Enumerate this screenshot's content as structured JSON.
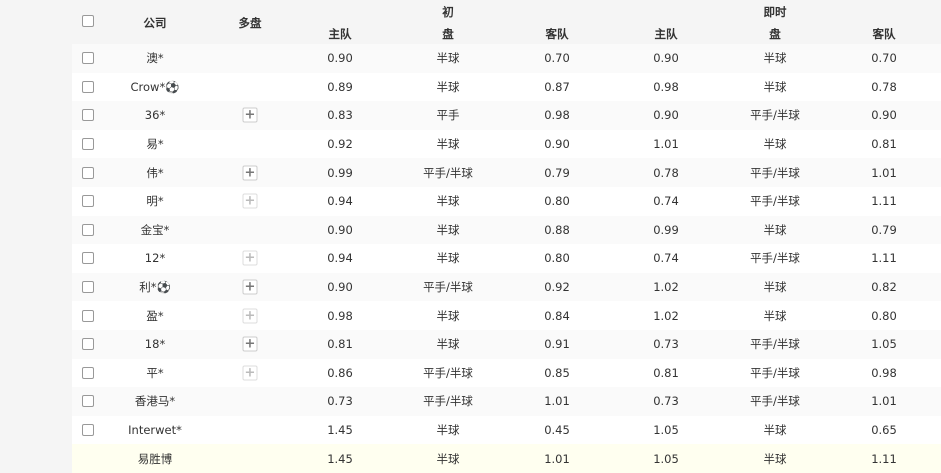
{
  "header": {
    "company": "公司",
    "multi": "多盘",
    "initial": "初",
    "live": "即时",
    "home": "主队",
    "line": "盘",
    "away": "客队"
  },
  "rows": [
    {
      "company": "澳*",
      "plus": "none",
      "i_home": "0.90",
      "i_line": "半球",
      "i_away": "0.70",
      "l_home": "0.90",
      "l_line": "半球",
      "l_away": "0.70"
    },
    {
      "company": "Crow*⚽",
      "plus": "none",
      "i_home": "0.89",
      "i_line": "半球",
      "i_away": "0.87",
      "l_home": "0.98",
      "l_line": "半球",
      "l_away": "0.78"
    },
    {
      "company": "36*",
      "plus": "active",
      "i_home": "0.83",
      "i_line": "平手",
      "i_away": "0.98",
      "l_home": "0.90",
      "l_line": "平手/半球",
      "l_away": "0.90"
    },
    {
      "company": "易*",
      "plus": "none",
      "i_home": "0.92",
      "i_line": "半球",
      "i_away": "0.90",
      "l_home": "1.01",
      "l_line": "半球",
      "l_away": "0.81"
    },
    {
      "company": "伟*",
      "plus": "active",
      "i_home": "0.99",
      "i_line": "平手/半球",
      "i_away": "0.79",
      "l_home": "0.78",
      "l_line": "平手/半球",
      "l_away": "1.01"
    },
    {
      "company": "明*",
      "plus": "disabled",
      "i_home": "0.94",
      "i_line": "半球",
      "i_away": "0.80",
      "l_home": "0.74",
      "l_line": "平手/半球",
      "l_away": "1.11"
    },
    {
      "company": "金宝*",
      "plus": "none",
      "i_home": "0.90",
      "i_line": "半球",
      "i_away": "0.88",
      "l_home": "0.99",
      "l_line": "半球",
      "l_away": "0.79"
    },
    {
      "company": "12*",
      "plus": "disabled",
      "i_home": "0.94",
      "i_line": "半球",
      "i_away": "0.80",
      "l_home": "0.74",
      "l_line": "平手/半球",
      "l_away": "1.11"
    },
    {
      "company": "利*⚽",
      "plus": "active",
      "i_home": "0.90",
      "i_line": "平手/半球",
      "i_away": "0.92",
      "l_home": "1.02",
      "l_line": "半球",
      "l_away": "0.82"
    },
    {
      "company": "盈*",
      "plus": "disabled",
      "i_home": "0.98",
      "i_line": "半球",
      "i_away": "0.84",
      "l_home": "1.02",
      "l_line": "半球",
      "l_away": "0.80"
    },
    {
      "company": "18*",
      "plus": "active",
      "i_home": "0.81",
      "i_line": "半球",
      "i_away": "0.91",
      "l_home": "0.73",
      "l_line": "平手/半球",
      "l_away": "1.05"
    },
    {
      "company": "平*",
      "plus": "disabled",
      "i_home": "0.86",
      "i_line": "平手/半球",
      "i_away": "0.85",
      "l_home": "0.81",
      "l_line": "平手/半球",
      "l_away": "0.98"
    },
    {
      "company": "香港马*",
      "plus": "none",
      "i_home": "0.73",
      "i_line": "平手/半球",
      "i_away": "1.01",
      "l_home": "0.73",
      "l_line": "平手/半球",
      "l_away": "1.01"
    },
    {
      "company": "Interwet*",
      "plus": "none",
      "i_home": "1.45",
      "i_line": "半球",
      "i_away": "0.45",
      "l_home": "1.05",
      "l_line": "半球",
      "l_away": "0.65"
    },
    {
      "company": "易胜博",
      "plus": "none",
      "highlight": true,
      "nocheck": true,
      "i_home": "1.45",
      "i_line": "半球",
      "i_away": "1.01",
      "l_home": "1.05",
      "l_line": "半球",
      "l_away": "1.11"
    }
  ]
}
